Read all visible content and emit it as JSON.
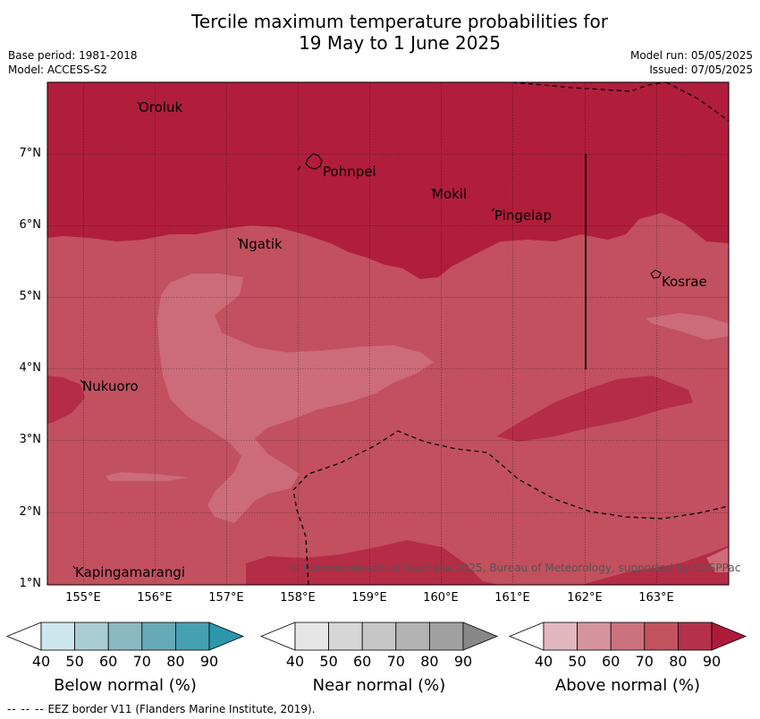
{
  "title": {
    "line1": "Tercile maximum temperature probabilities for",
    "line2": "19 May to 1 June 2025"
  },
  "meta_left": {
    "base_period": "Base period: 1981-2018",
    "model": "Model: ACCESS-S2"
  },
  "meta_right": {
    "model_run": "Model run: 05/05/2025",
    "issued": "Issued: 07/05/2025"
  },
  "lat_labels": [
    "7°N",
    "6°N",
    "5°N",
    "4°N",
    "3°N",
    "2°N",
    "1°N"
  ],
  "lon_labels": [
    "155°E",
    "156°E",
    "157°E",
    "158°E",
    "159°E",
    "160°E",
    "161°E",
    "162°E",
    "163°E"
  ],
  "places": [
    {
      "name": "Oroluk"
    },
    {
      "name": "Pohnpei"
    },
    {
      "name": "Mokil"
    },
    {
      "name": "Pingelap"
    },
    {
      "name": "Ngatik"
    },
    {
      "name": "Kosrae"
    },
    {
      "name": "Nukuoro"
    },
    {
      "name": "Kapingamarangi"
    }
  ],
  "credit": "© Commonwealth of Australia 2025, Bureau of Meteorology, supported by COSPPac",
  "colorbars": [
    {
      "title": "Below normal (%)",
      "ticks": [
        "40",
        "50",
        "60",
        "70",
        "80",
        "90"
      ],
      "colors": [
        "#ffffff",
        "#cde6ec",
        "#a9cdd3",
        "#8ab9c2",
        "#67aab7",
        "#45a0b1",
        "#2b97ab"
      ]
    },
    {
      "title": "Near normal (%)",
      "ticks": [
        "40",
        "50",
        "60",
        "70",
        "80",
        "90"
      ],
      "colors": [
        "#ffffff",
        "#e6e6e6",
        "#d6d6d6",
        "#c6c6c6",
        "#b3b3b3",
        "#a0a0a0",
        "#878787"
      ]
    },
    {
      "title": "Above normal (%)",
      "ticks": [
        "40",
        "50",
        "60",
        "70",
        "80",
        "90"
      ],
      "colors": [
        "#ffffff",
        "#e2b7bf",
        "#d5939d",
        "#cc727f",
        "#c2535f",
        "#b5304a",
        "#ad1a3a"
      ]
    }
  ],
  "map_colors": {
    "above_60_70": "#cb6c78",
    "above_70_80": "#c2505e",
    "above_80_90": "#b52c46",
    "above_90": "#b01e3b",
    "near_light": "#dc9aa2"
  },
  "footer": {
    "dashes": "-- -- --",
    "text": "EEZ border V11 (Flanders Marine Institute, 2019)."
  }
}
